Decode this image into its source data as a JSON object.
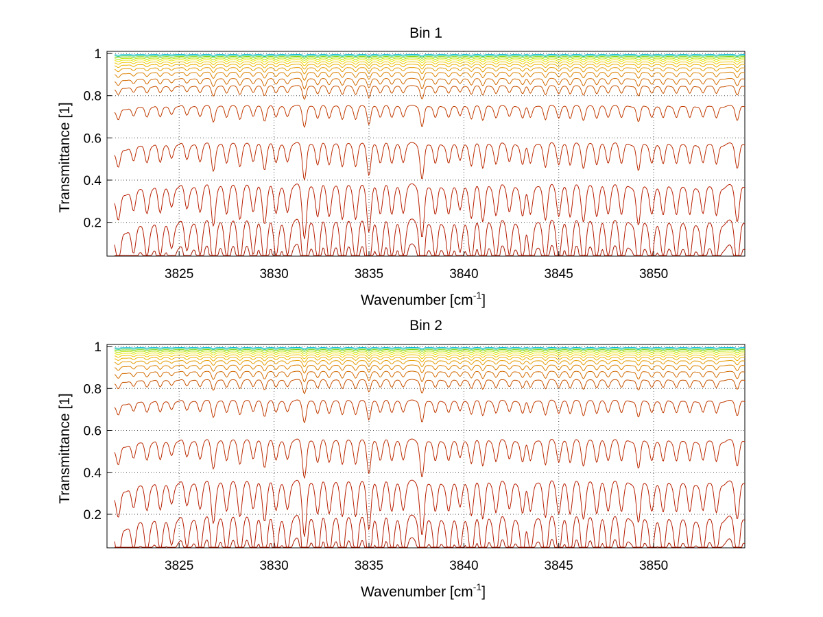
{
  "chart_data": [
    {
      "type": "line",
      "title": "Bin 1",
      "xlabel": "Wavenumber [cm",
      "xlabel_sup": "-1",
      "xlabel_suffix": "]",
      "ylabel": "Transmittance [1]",
      "xlim": [
        3821.2,
        3854.8
      ],
      "ylim": [
        0.04,
        1.01
      ],
      "xticks": [
        3825,
        3830,
        3835,
        3840,
        3845,
        3850
      ],
      "yticks": [
        0.2,
        0.4,
        0.6,
        0.8,
        1
      ],
      "ytick_labels": [
        "0.2",
        "0.4",
        "0.6",
        "0.8",
        "1"
      ],
      "grid": true,
      "series_levels": [
        0.995,
        0.99,
        0.985,
        0.978,
        0.97,
        0.96,
        0.948,
        0.932,
        0.91,
        0.88,
        0.845,
        0.75,
        0.57,
        0.37,
        0.2,
        0.08
      ],
      "series_colors": [
        "#00b8d8",
        "#27c870",
        "#78d400",
        "#b9e200",
        "#e7e400",
        "#f0c800",
        "#ecb000",
        "#e49a00",
        "#dc8200",
        "#d26a00",
        "#c85200",
        "#c03a00",
        "#bb2a00",
        "#b81e00",
        "#b41a00",
        "#a81800"
      ]
    },
    {
      "type": "line",
      "title": "Bin 2",
      "xlabel": "Wavenumber [cm",
      "xlabel_sup": "-1",
      "xlabel_suffix": "]",
      "ylabel": "Transmittance [1]",
      "xlim": [
        3821.2,
        3854.8
      ],
      "ylim": [
        0.04,
        1.01
      ],
      "xticks": [
        3825,
        3830,
        3835,
        3840,
        3845,
        3850
      ],
      "yticks": [
        0.2,
        0.4,
        0.6,
        0.8,
        1
      ],
      "ytick_labels": [
        "0.2",
        "0.4",
        "0.6",
        "0.8",
        "1"
      ],
      "grid": true,
      "series_levels": [
        0.995,
        0.99,
        0.985,
        0.978,
        0.97,
        0.96,
        0.948,
        0.932,
        0.91,
        0.88,
        0.84,
        0.74,
        0.55,
        0.35,
        0.18,
        0.07
      ],
      "series_colors": [
        "#00b8d8",
        "#27c870",
        "#78d400",
        "#b9e200",
        "#e7e400",
        "#f0c800",
        "#ecb000",
        "#e49a00",
        "#dc8200",
        "#d26a00",
        "#c85200",
        "#c03a00",
        "#bb2a00",
        "#b81e00",
        "#b41a00",
        "#a81800"
      ]
    }
  ]
}
